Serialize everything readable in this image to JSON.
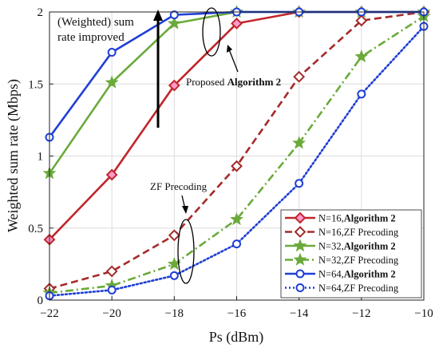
{
  "chart_data": {
    "type": "line",
    "title": "",
    "xlabel": "Ps (dBm)",
    "ylabel": "Weighted sum rate (Mbps)",
    "xlim": [
      -22,
      -10
    ],
    "ylim": [
      0,
      2
    ],
    "xticks": [
      -22,
      -20,
      -18,
      -16,
      -14,
      -12,
      -10
    ],
    "yticks": [
      0,
      0.5,
      1,
      1.5,
      2
    ],
    "grid": true,
    "legend_position": "bottom-right",
    "x": [
      -22,
      -20,
      -18,
      -16,
      -14,
      -12,
      -10
    ],
    "series": [
      {
        "name_prefix": "N=16,",
        "name_main": "Algorithm 2",
        "color": "#c0262b",
        "marker": "diamond",
        "dash": "solid",
        "markerfill": "#ff99cc",
        "values": [
          0.42,
          0.87,
          1.49,
          1.92,
          2.0,
          2.0,
          2.0
        ]
      },
      {
        "name_prefix": "N=16,",
        "name_main": "ZF Precoding",
        "color": "#a52a2a",
        "marker": "diamond",
        "dash": "dash",
        "markerfill": "#ffffff",
        "values": [
          0.08,
          0.2,
          0.45,
          0.93,
          1.55,
          1.94,
          2.0
        ]
      },
      {
        "name_prefix": "N=32,",
        "name_main": "Algorithm 2",
        "color": "#6aaa3a",
        "marker": "star",
        "dash": "solid",
        "markerfill": "#6aaa3a",
        "values": [
          0.88,
          1.51,
          1.92,
          2.0,
          2.0,
          2.0,
          2.0
        ]
      },
      {
        "name_prefix": "N=32,",
        "name_main": "ZF Precoding",
        "color": "#6aaa3a",
        "marker": "star",
        "dash": "dashdot",
        "markerfill": "#6aaa3a",
        "values": [
          0.05,
          0.1,
          0.25,
          0.56,
          1.09,
          1.69,
          1.97
        ]
      },
      {
        "name_prefix": "N=64,",
        "name_main": "Algorithm 2",
        "color": "#1f3fd6",
        "marker": "circle",
        "dash": "solid",
        "markerfill": "#ffffff",
        "values": [
          1.13,
          1.72,
          1.98,
          2.0,
          2.0,
          2.0,
          2.0
        ]
      },
      {
        "name_prefix": "N=64,",
        "name_main": "ZF Precoding",
        "color": "#1f3fd6",
        "marker": "circle",
        "dash": "dot",
        "markerfill": "#ffffff",
        "values": [
          0.03,
          0.07,
          0.17,
          0.39,
          0.81,
          1.43,
          1.9
        ]
      }
    ],
    "annotations": {
      "improved_line1": "(Weighted) sum",
      "improved_line2": "rate improved",
      "proposed_prefix": "Proposed ",
      "proposed_bold": "Algorithm 2",
      "zf": "ZF Precoding"
    }
  }
}
